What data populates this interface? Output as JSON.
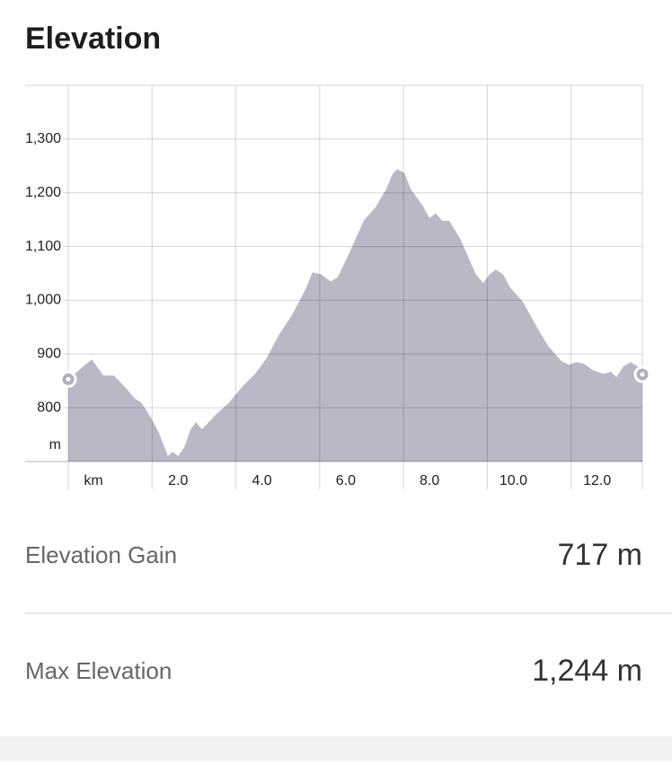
{
  "chart_data": {
    "type": "area",
    "title": "Elevation",
    "y_label": "m",
    "x_label": "km",
    "color": "#b8b8c6",
    "grid": true,
    "x": [
      0,
      0.3,
      0.56,
      0.84,
      1.09,
      1.37,
      1.59,
      1.74,
      1.97,
      2.14,
      2.27,
      2.38,
      2.49,
      2.62,
      2.77,
      2.92,
      3.05,
      3.19,
      3.52,
      3.84,
      4.16,
      4.48,
      4.74,
      5.02,
      5.34,
      5.66,
      5.83,
      6.04,
      6.26,
      6.43,
      6.69,
      7.05,
      7.33,
      7.59,
      7.74,
      7.85,
      8.02,
      8.17,
      8.45,
      8.62,
      8.77,
      8.92,
      9.09,
      9.35,
      9.73,
      9.9,
      10.05,
      10.2,
      10.38,
      10.55,
      10.85,
      11.02,
      11.28,
      11.45,
      11.77,
      11.94,
      12.13,
      12.3,
      12.52,
      12.77,
      12.95,
      13.08,
      13.25,
      13.42,
      13.59,
      13.7
    ],
    "values": [
      853,
      873,
      890,
      860,
      860,
      837,
      817,
      810,
      782,
      757,
      732,
      710,
      718,
      710,
      727,
      760,
      773,
      760,
      787,
      810,
      840,
      865,
      893,
      935,
      973,
      1020,
      1052,
      1048,
      1035,
      1043,
      1085,
      1148,
      1173,
      1207,
      1235,
      1244,
      1237,
      1207,
      1177,
      1153,
      1162,
      1148,
      1148,
      1115,
      1048,
      1032,
      1048,
      1057,
      1048,
      1023,
      997,
      973,
      937,
      915,
      887,
      880,
      885,
      882,
      870,
      863,
      867,
      857,
      877,
      885,
      877,
      862
    ],
    "xlim": [
      0,
      13.7
    ],
    "xticks": [
      {
        "value": 2,
        "label": "2.0"
      },
      {
        "value": 4,
        "label": "4.0"
      },
      {
        "value": 6,
        "label": "6.0"
      },
      {
        "value": 8,
        "label": "8.0"
      },
      {
        "value": 10,
        "label": "10.0"
      },
      {
        "value": 12,
        "label": "12.0"
      }
    ],
    "ylim": [
      700,
      1400
    ],
    "yticks": [
      800,
      900,
      {
        "value": 1000,
        "label": "1,000"
      },
      {
        "value": 1100,
        "label": "1,100"
      },
      {
        "value": 1200,
        "label": "1,200"
      },
      {
        "value": 1300,
        "label": "1,300"
      }
    ]
  },
  "stats": [
    {
      "label": "Elevation Gain",
      "value": "717 m"
    },
    {
      "label": "Max Elevation",
      "value": "1,244 m"
    }
  ]
}
